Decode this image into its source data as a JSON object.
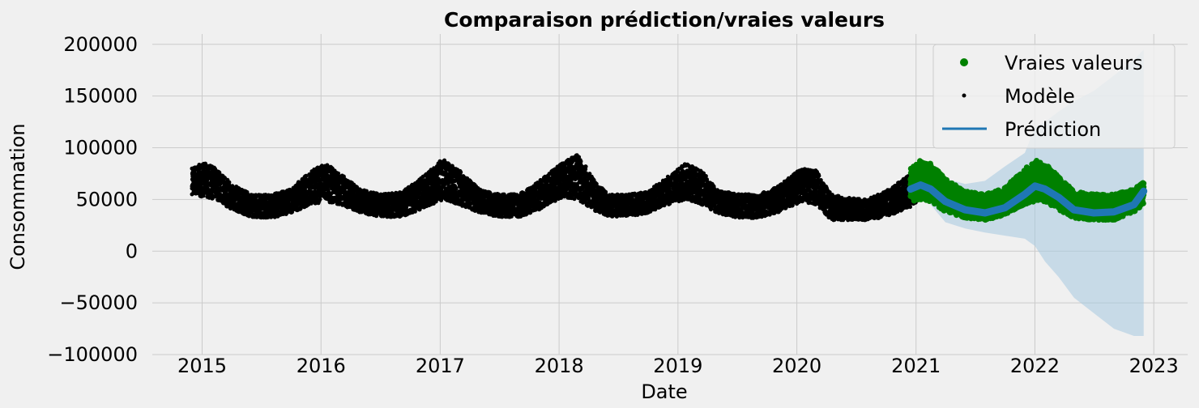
{
  "chart_data": {
    "type": "scatter",
    "title": "Comparaison prédiction/vraies valeurs",
    "xlabel": "Date",
    "ylabel": "Consommation",
    "x_ticks": [
      "2015",
      "2016",
      "2017",
      "2018",
      "2019",
      "2020",
      "2021",
      "2022",
      "2023"
    ],
    "y_ticks": [
      "200000",
      "150000",
      "100000",
      "50000",
      "0",
      "−50000",
      "−100000"
    ],
    "xlim": [
      "2014-08-01",
      "2023-04-15"
    ],
    "ylim": [
      -100000,
      210000
    ],
    "grid": true,
    "legend": {
      "placement": "top-right",
      "entries": [
        "Vraies valeurs",
        "Modèle",
        "Prédiction"
      ]
    },
    "colors": {
      "actual": "#008000",
      "model": "#000000",
      "prediction": "#1f77b4",
      "interval": "#a6c8e0"
    },
    "series": [
      {
        "name": "Modèle",
        "kind": "points",
        "date_range": [
          "2014-12-01",
          "2020-12-31"
        ],
        "x": [
          "2014-12-01",
          "2015-01-10",
          "2015-02-15",
          "2015-04-01",
          "2015-06-01",
          "2015-08-01",
          "2015-10-01",
          "2015-12-01",
          "2016-01-15",
          "2016-03-01",
          "2016-05-01",
          "2016-07-01",
          "2016-09-01",
          "2016-11-01",
          "2017-01-10",
          "2017-03-01",
          "2017-05-01",
          "2017-07-01",
          "2017-09-01",
          "2017-11-01",
          "2018-01-10",
          "2018-02-28",
          "2018-04-15",
          "2018-06-01",
          "2018-08-01",
          "2018-10-01",
          "2018-12-01",
          "2019-01-25",
          "2019-03-15",
          "2019-05-01",
          "2019-07-01",
          "2019-09-01",
          "2019-11-01",
          "2020-01-15",
          "2020-03-01",
          "2020-04-15",
          "2020-06-01",
          "2020-08-01",
          "2020-10-01",
          "2020-12-31"
        ],
        "low": [
          55000,
          52000,
          50000,
          40000,
          33000,
          32000,
          37000,
          45000,
          48000,
          45000,
          37000,
          33000,
          33000,
          40000,
          50000,
          45000,
          37000,
          33000,
          33000,
          40000,
          52000,
          50000,
          40000,
          33000,
          33000,
          37000,
          45000,
          50000,
          45000,
          37000,
          32000,
          32000,
          37000,
          48000,
          45000,
          30000,
          30000,
          30000,
          33000,
          45000
        ],
        "high": [
          82000,
          85000,
          80000,
          65000,
          55000,
          55000,
          60000,
          78000,
          85000,
          75000,
          60000,
          55000,
          57000,
          70000,
          90000,
          78000,
          60000,
          55000,
          55000,
          68000,
          85000,
          95000,
          70000,
          55000,
          55000,
          58000,
          72000,
          85000,
          78000,
          60000,
          55000,
          55000,
          62000,
          80000,
          78000,
          55000,
          52000,
          50000,
          58000,
          78000
        ]
      },
      {
        "name": "Vraies valeurs",
        "kind": "points",
        "date_range": [
          "2020-12-15",
          "2022-12-01"
        ],
        "x": [
          "2020-12-15",
          "2021-01-15",
          "2021-02-15",
          "2021-04-01",
          "2021-06-01",
          "2021-08-01",
          "2021-10-01",
          "2021-12-01",
          "2022-01-01",
          "2022-02-01",
          "2022-03-15",
          "2022-05-01",
          "2022-07-01",
          "2022-09-01",
          "2022-11-01",
          "2022-12-01"
        ],
        "low": [
          48000,
          50000,
          48000,
          38000,
          32000,
          30000,
          35000,
          45000,
          48000,
          48000,
          40000,
          32000,
          30000,
          30000,
          38000,
          45000
        ],
        "high": [
          80000,
          88000,
          85000,
          70000,
          58000,
          55000,
          62000,
          80000,
          88000,
          85000,
          72000,
          58000,
          55000,
          55000,
          60000,
          67000
        ]
      },
      {
        "name": "Prédiction",
        "kind": "line",
        "x": [
          "2020-12-15",
          "2021-01-15",
          "2021-02-15",
          "2021-04-01",
          "2021-06-01",
          "2021-08-01",
          "2021-10-01",
          "2021-12-01",
          "2022-01-01",
          "2022-02-01",
          "2022-03-15",
          "2022-05-01",
          "2022-07-01",
          "2022-09-01",
          "2022-11-01",
          "2022-12-01"
        ],
        "y": [
          60000,
          64000,
          60000,
          48000,
          40000,
          37000,
          42000,
          55000,
          63000,
          60000,
          52000,
          40000,
          37000,
          38000,
          45000,
          58000
        ],
        "lower": [
          58000,
          55000,
          45000,
          28000,
          22000,
          18000,
          15000,
          12000,
          5000,
          -10000,
          -25000,
          -45000,
          -60000,
          -75000,
          -82000,
          -82000
        ],
        "upper": [
          62000,
          70000,
          72000,
          70000,
          65000,
          68000,
          82000,
          95000,
          120000,
          125000,
          135000,
          145000,
          155000,
          170000,
          185000,
          195000
        ]
      }
    ]
  }
}
